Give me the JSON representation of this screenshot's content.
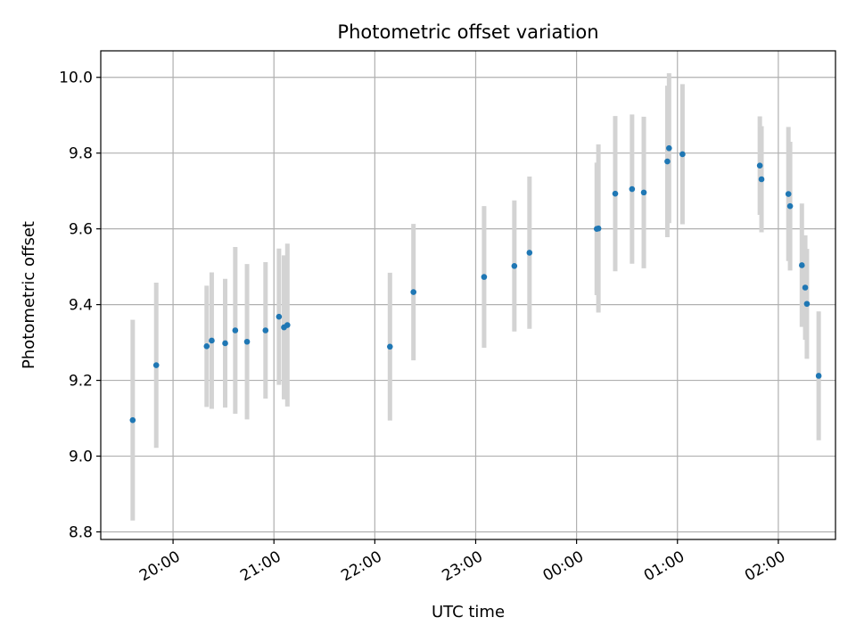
{
  "chart_data": {
    "type": "scatter",
    "title": "Photometric offset variation",
    "xlabel": "UTC time",
    "ylabel": "Photometric offset",
    "x_axis": "time",
    "x_tick_labels": [
      "20:00",
      "21:00",
      "22:00",
      "23:00",
      "00:00",
      "01:00",
      "02:00"
    ],
    "x_range": [
      "19:17",
      "02:34"
    ],
    "ylim": [
      8.78,
      10.07
    ],
    "y_ticks": [
      8.8,
      9.0,
      9.2,
      9.4,
      9.6,
      9.8,
      10.0
    ],
    "y_tick_labels": [
      "8.8",
      "9.0",
      "9.2",
      "9.4",
      "9.6",
      "9.8",
      "10.0"
    ],
    "grid": true,
    "point_color": "#1f77b4",
    "errorbar_color": "#d3d3d3",
    "series": [
      {
        "points": [
          {
            "t": "19:36",
            "y": 9.095,
            "err": 0.265
          },
          {
            "t": "19:50",
            "y": 9.24,
            "err": 0.218
          },
          {
            "t": "20:20",
            "y": 9.29,
            "err": 0.16
          },
          {
            "t": "20:23",
            "y": 9.305,
            "err": 0.18
          },
          {
            "t": "20:31",
            "y": 9.298,
            "err": 0.17
          },
          {
            "t": "20:37",
            "y": 9.332,
            "err": 0.22
          },
          {
            "t": "20:44",
            "y": 9.302,
            "err": 0.205
          },
          {
            "t": "20:55",
            "y": 9.332,
            "err": 0.18
          },
          {
            "t": "21:03",
            "y": 9.368,
            "err": 0.18
          },
          {
            "t": "21:06",
            "y": 9.34,
            "err": 0.19
          },
          {
            "t": "21:08",
            "y": 9.346,
            "err": 0.215
          },
          {
            "t": "22:09",
            "y": 9.289,
            "err": 0.195
          },
          {
            "t": "22:23",
            "y": 9.433,
            "err": 0.18
          },
          {
            "t": "23:05",
            "y": 9.473,
            "err": 0.187
          },
          {
            "t": "23:23",
            "y": 9.502,
            "err": 0.173
          },
          {
            "t": "23:32",
            "y": 9.537,
            "err": 0.201
          },
          {
            "t": "00:12",
            "y": 9.6,
            "err": 0.175
          },
          {
            "t": "00:13",
            "y": 9.601,
            "err": 0.222
          },
          {
            "t": "00:23",
            "y": 9.693,
            "err": 0.205
          },
          {
            "t": "00:33",
            "y": 9.705,
            "err": 0.197
          },
          {
            "t": "00:40",
            "y": 9.696,
            "err": 0.2
          },
          {
            "t": "00:54",
            "y": 9.778,
            "err": 0.2
          },
          {
            "t": "00:55",
            "y": 9.813,
            "err": 0.198
          },
          {
            "t": "01:03",
            "y": 9.797,
            "err": 0.185
          },
          {
            "t": "01:49",
            "y": 9.767,
            "err": 0.13
          },
          {
            "t": "01:50",
            "y": 9.731,
            "err": 0.14
          },
          {
            "t": "02:06",
            "y": 9.692,
            "err": 0.177
          },
          {
            "t": "02:07",
            "y": 9.66,
            "err": 0.17
          },
          {
            "t": "02:14",
            "y": 9.504,
            "err": 0.163
          },
          {
            "t": "02:16",
            "y": 9.445,
            "err": 0.138
          },
          {
            "t": "02:17",
            "y": 9.402,
            "err": 0.145
          },
          {
            "t": "02:24",
            "y": 9.212,
            "err": 0.17
          }
        ]
      }
    ]
  }
}
